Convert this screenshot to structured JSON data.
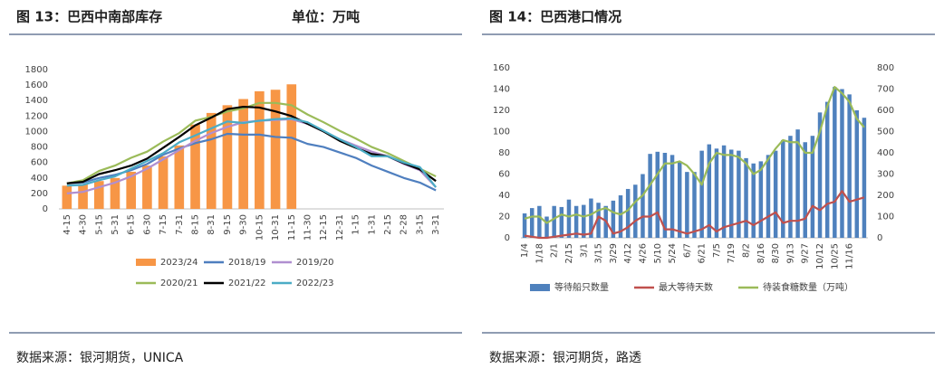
{
  "chart_data": [
    {
      "type": "combo",
      "title": "图 13：巴西中南部库存",
      "subtitle": "单位：万吨",
      "source": "数据来源：银河期货，UNICA",
      "categories": [
        "4-15",
        "4-30",
        "5-15",
        "5-31",
        "6-15",
        "6-30",
        "7-15",
        "7-31",
        "8-15",
        "8-31",
        "9-15",
        "9-30",
        "10-15",
        "10-31",
        "11-15",
        "11-30",
        "12-15",
        "12-31",
        "1-15",
        "1-31",
        "2-15",
        "2-28",
        "3-15",
        "3-31"
      ],
      "ylim": [
        0,
        1800
      ],
      "yticks": [
        0,
        200,
        400,
        600,
        800,
        1000,
        1200,
        1400,
        1600,
        1800
      ],
      "grid": false,
      "series": [
        {
          "name": "2023/24",
          "type": "bar",
          "color": "#f79646",
          "values": [
            300,
            320,
            360,
            400,
            480,
            560,
            680,
            820,
            1090,
            1240,
            1340,
            1420,
            1520,
            1540,
            1610,
            null,
            null,
            null,
            null,
            null,
            null,
            null,
            null,
            null
          ]
        },
        {
          "name": "2018/19",
          "type": "line",
          "color": "#4f7fbf",
          "values": [
            330,
            340,
            400,
            440,
            500,
            580,
            700,
            780,
            850,
            900,
            970,
            960,
            960,
            930,
            920,
            840,
            800,
            730,
            660,
            560,
            480,
            400,
            340,
            240
          ]
        },
        {
          "name": "2019/20",
          "type": "line",
          "color": "#b08fd0",
          "values": [
            200,
            220,
            280,
            340,
            420,
            520,
            640,
            760,
            880,
            980,
            1060,
            1120,
            1140,
            1150,
            1160,
            1100,
            1000,
            900,
            820,
            740,
            680,
            580,
            500,
            280
          ]
        },
        {
          "name": "2020/21",
          "type": "line",
          "color": "#9bbb59",
          "values": [
            330,
            370,
            490,
            560,
            660,
            740,
            870,
            980,
            1140,
            1190,
            1260,
            1300,
            1370,
            1370,
            1340,
            1220,
            1120,
            1010,
            910,
            800,
            720,
            620,
            520,
            420
          ]
        },
        {
          "name": "2021/22",
          "type": "line",
          "color": "#000000",
          "values": [
            330,
            350,
            450,
            500,
            560,
            650,
            790,
            930,
            1080,
            1180,
            1290,
            1320,
            1310,
            1260,
            1200,
            1100,
            1000,
            880,
            790,
            710,
            680,
            590,
            510,
            360
          ]
        },
        {
          "name": "2022/23",
          "type": "line",
          "color": "#4bacc6",
          "values": [
            300,
            310,
            370,
            420,
            520,
            620,
            720,
            860,
            950,
            1040,
            1130,
            1110,
            1140,
            1160,
            1170,
            1120,
            1010,
            900,
            800,
            680,
            680,
            600,
            540,
            280
          ]
        }
      ]
    },
    {
      "type": "combo",
      "title": "图 14：巴西港口情况",
      "source": "数据来源：银河期货，路透",
      "categories": [
        "1/4",
        null,
        "1/18",
        null,
        "2/1",
        null,
        "2/15",
        null,
        "3/1",
        null,
        "3/15",
        null,
        "3/29",
        null,
        "4/12",
        null,
        "4/26",
        null,
        "5/10",
        null,
        "5/24",
        null,
        "6/7",
        null,
        "6/21",
        null,
        "7/5",
        null,
        "7/19",
        null,
        "8/2",
        null,
        "8/16",
        null,
        "8/30",
        null,
        "9/13",
        null,
        "9/27",
        null,
        "10/12",
        null,
        "10/25",
        null,
        "11/16",
        null,
        null
      ],
      "ylim": [
        0,
        160
      ],
      "yticks": [
        0,
        20,
        40,
        60,
        80,
        100,
        120,
        140,
        160
      ],
      "y2lim": [
        0,
        800
      ],
      "y2ticks": [
        0,
        100,
        200,
        300,
        400,
        500,
        600,
        700,
        800
      ],
      "grid": false,
      "series": [
        {
          "name": "等待船只数量",
          "type": "bar",
          "color": "#4f81bd",
          "values": [
            23,
            28,
            30,
            20,
            30,
            29,
            36,
            30,
            31,
            37,
            33,
            30,
            35,
            40,
            46,
            50,
            60,
            79,
            81,
            80,
            78,
            72,
            62,
            62,
            82,
            88,
            84,
            87,
            83,
            82,
            75,
            70,
            72,
            78,
            82,
            92,
            96,
            102,
            90,
            96,
            118,
            128,
            142,
            140,
            135,
            120,
            113
          ]
        },
        {
          "name": "最大等待天数",
          "type": "line",
          "axis": "y2",
          "color": "#c0504d",
          "values": [
            10,
            5,
            0,
            0,
            5,
            10,
            15,
            20,
            15,
            20,
            100,
            80,
            20,
            30,
            50,
            80,
            100,
            100,
            120,
            40,
            40,
            30,
            20,
            30,
            40,
            60,
            30,
            50,
            60,
            70,
            80,
            60,
            80,
            100,
            120,
            70,
            80,
            80,
            90,
            150,
            130,
            160,
            170,
            220,
            170,
            180,
            190
          ]
        },
        {
          "name": "待装食糖数量（万吨）",
          "type": "line",
          "axis": "y2",
          "color": "#9bbb59",
          "values": [
            90,
            100,
            100,
            70,
            90,
            110,
            100,
            110,
            100,
            110,
            130,
            140,
            120,
            110,
            130,
            170,
            200,
            250,
            300,
            350,
            350,
            360,
            340,
            300,
            250,
            350,
            400,
            390,
            390,
            380,
            350,
            300,
            320,
            370,
            420,
            460,
            450,
            450,
            400,
            400,
            500,
            620,
            710,
            680,
            640,
            560,
            520
          ]
        }
      ]
    }
  ]
}
